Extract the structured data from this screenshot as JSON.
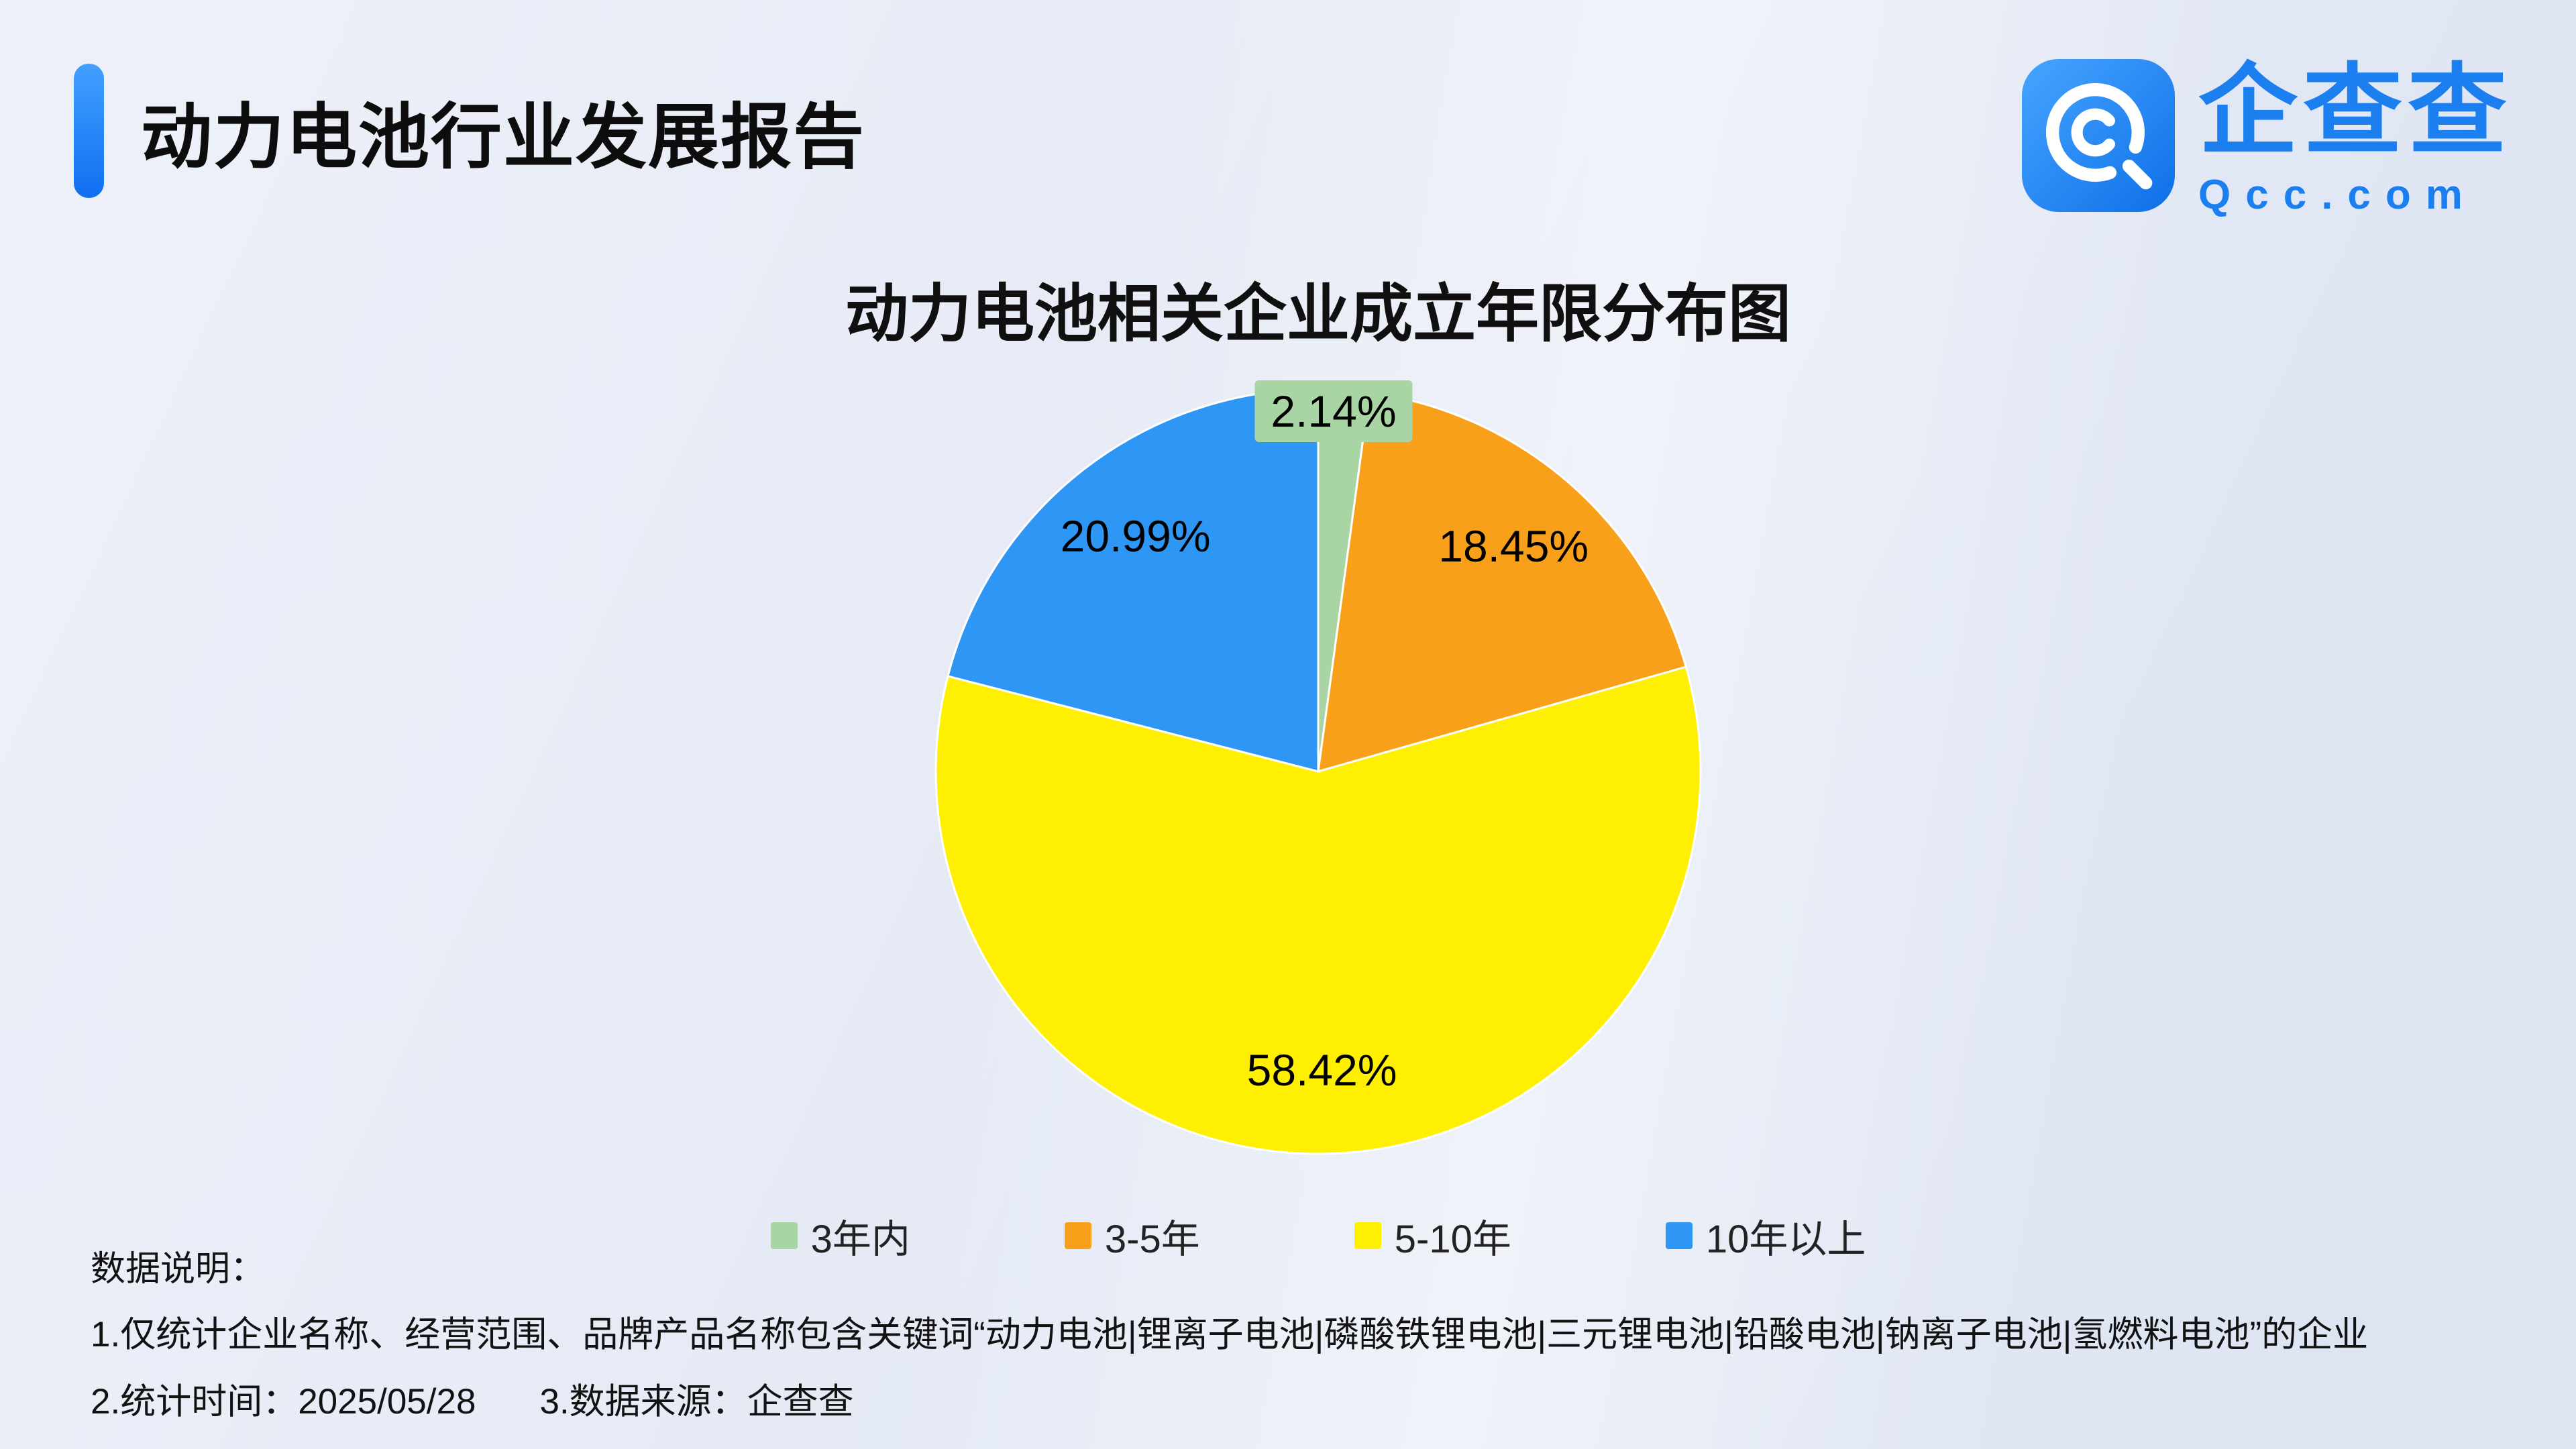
{
  "header": {
    "title": "动力电池行业发展报告",
    "accent_color": "#1677ff",
    "logo": {
      "name": "企查查",
      "domain": "Qcc.com",
      "brand_color": "#1b7ff0"
    }
  },
  "chart_data": {
    "type": "pie",
    "title": "动力电池相关企业成立年限分布图",
    "legend_position": "bottom",
    "start_angle_deg": 0,
    "clockwise": true,
    "label_color": "#000000",
    "slices": [
      {
        "key": "under-3-years",
        "label": "3年内",
        "value": 2.14,
        "display": "2.14%",
        "color": "#a9d4a3"
      },
      {
        "key": "3-5-years",
        "label": "3-5年",
        "value": 18.45,
        "display": "18.45%",
        "color": "#f9a01b"
      },
      {
        "key": "5-10-years",
        "label": "5-10年",
        "value": 58.42,
        "display": "58.42%",
        "color": "#fef000"
      },
      {
        "key": "over-10-years",
        "label": "10年以上",
        "value": 20.99,
        "display": "20.99%",
        "color": "#2e96f5"
      }
    ]
  },
  "footer": {
    "heading": "数据说明：",
    "note1": "1.仅统计企业名称、经营范围、品牌产品名称包含关键词“动力电池|锂离子电池|磷酸铁锂电池|三元锂电池|铅酸电池|钠离子电池|氢燃料电池”的企业",
    "note2": "2.统计时间：2025/05/28",
    "note3": "3.数据来源：企查查"
  }
}
